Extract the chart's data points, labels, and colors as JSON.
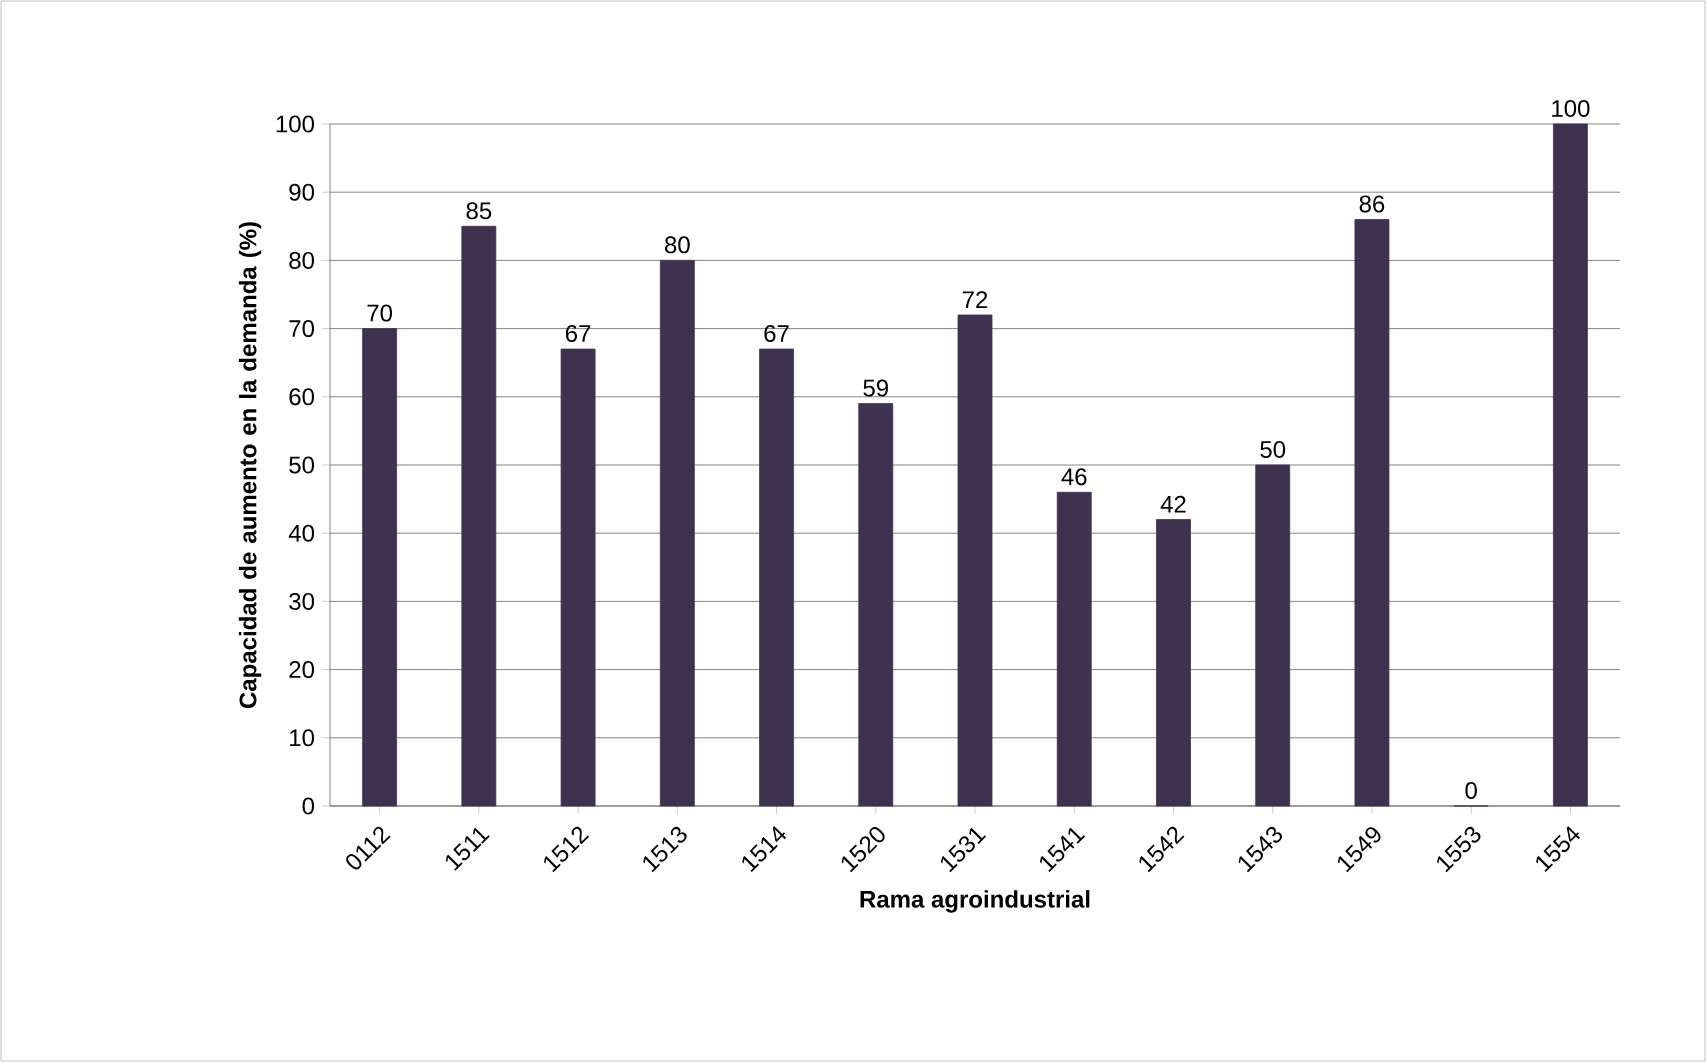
{
  "chart_data": {
    "type": "bar",
    "xlabel": "Rama agroindustrial",
    "ylabel": "Capacidad de aumento en la demanda (%)",
    "categories": [
      "0112",
      "1511",
      "1512",
      "1513",
      "1514",
      "1520",
      "1531",
      "1541",
      "1542",
      "1543",
      "1549",
      "1553",
      "1554"
    ],
    "values": [
      70,
      85,
      67,
      80,
      67,
      59,
      72,
      46,
      42,
      50,
      86,
      0,
      100
    ],
    "color": "#3f3150",
    "ylim": [
      0,
      100
    ],
    "yticks": [
      0,
      10,
      20,
      30,
      40,
      50,
      60,
      70,
      80,
      90,
      100
    ],
    "grid": "y",
    "data_labels": true
  }
}
